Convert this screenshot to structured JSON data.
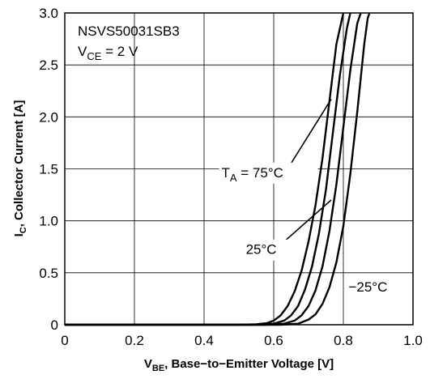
{
  "chart_data": {
    "type": "line",
    "title": "",
    "device": "NSVS50031SB3",
    "condition": {
      "symbol": "V",
      "sub": "CE",
      "rest": " = 2 V"
    },
    "xlabel": {
      "symbol": "V",
      "sub": "BE",
      "rest": ", Base−to−Emitter Voltage [V]"
    },
    "ylabel": {
      "symbol": "I",
      "sub": "C",
      "rest": ", Collector Current [A]"
    },
    "xlim": [
      0,
      1.0
    ],
    "ylim": [
      0,
      3.0
    ],
    "x_ticks": [
      0,
      0.2,
      0.4,
      0.6,
      0.8,
      1.0
    ],
    "x_tick_labels": [
      "0",
      "0.2",
      "0.4",
      "0.6",
      "0.8",
      "1.0"
    ],
    "y_ticks": [
      0,
      0.5,
      1.0,
      1.5,
      2.0,
      2.5,
      3.0
    ],
    "y_tick_labels": [
      "0",
      "0.5",
      "1.0",
      "1.5",
      "2.0",
      "2.5",
      "3.0"
    ],
    "grid": true,
    "line_color": "#000000",
    "series": [
      {
        "name": "T_A = 75°C",
        "x": [
          0,
          0.5,
          0.55,
          0.58,
          0.6,
          0.62,
          0.64,
          0.66,
          0.68,
          0.7,
          0.72,
          0.74,
          0.76,
          0.78,
          0.8
        ],
        "y": [
          0,
          0,
          0.005,
          0.015,
          0.04,
          0.09,
          0.18,
          0.32,
          0.52,
          0.8,
          1.15,
          1.6,
          2.15,
          2.7,
          3.0
        ]
      },
      {
        "name": "",
        "x": [
          0,
          0.54,
          0.6,
          0.63,
          0.65,
          0.67,
          0.69,
          0.71,
          0.73,
          0.75,
          0.77,
          0.79,
          0.81,
          0.82
        ],
        "y": [
          0,
          0,
          0.01,
          0.04,
          0.09,
          0.18,
          0.34,
          0.56,
          0.88,
          1.3,
          1.85,
          2.4,
          2.85,
          3.0
        ]
      },
      {
        "name": "25°C",
        "x": [
          0,
          0.58,
          0.63,
          0.66,
          0.68,
          0.7,
          0.72,
          0.74,
          0.76,
          0.78,
          0.8,
          0.82,
          0.84,
          0.85
        ],
        "y": [
          0,
          0,
          0.01,
          0.04,
          0.09,
          0.18,
          0.33,
          0.56,
          0.9,
          1.35,
          1.9,
          2.45,
          2.9,
          3.0
        ]
      },
      {
        "name": "−25°C",
        "x": [
          0,
          0.62,
          0.67,
          0.7,
          0.72,
          0.74,
          0.76,
          0.78,
          0.8,
          0.82,
          0.84,
          0.86,
          0.87,
          0.875
        ],
        "y": [
          0,
          0,
          0.01,
          0.05,
          0.1,
          0.2,
          0.36,
          0.6,
          0.95,
          1.45,
          2.05,
          2.7,
          2.95,
          3.0
        ]
      }
    ],
    "annotations": [
      {
        "name": "annot-75c",
        "symbol": "T",
        "sub": "A",
        "rest": " = 75°C",
        "label_x": 0.45,
        "label_y": 1.42,
        "leader": [
          [
            0.64,
            1.5
          ],
          [
            0.765,
            2.17
          ]
        ]
      },
      {
        "name": "annot-25c",
        "symbol": "",
        "sub": "",
        "rest": "25°C",
        "label_x": 0.52,
        "label_y": 0.68,
        "leader": [
          [
            0.63,
            0.8
          ],
          [
            0.765,
            1.2
          ]
        ]
      },
      {
        "name": "annot-neg25c",
        "symbol": "",
        "sub": "",
        "rest": "−25°C",
        "label_x": 0.815,
        "label_y": 0.32,
        "leader": null
      }
    ]
  }
}
